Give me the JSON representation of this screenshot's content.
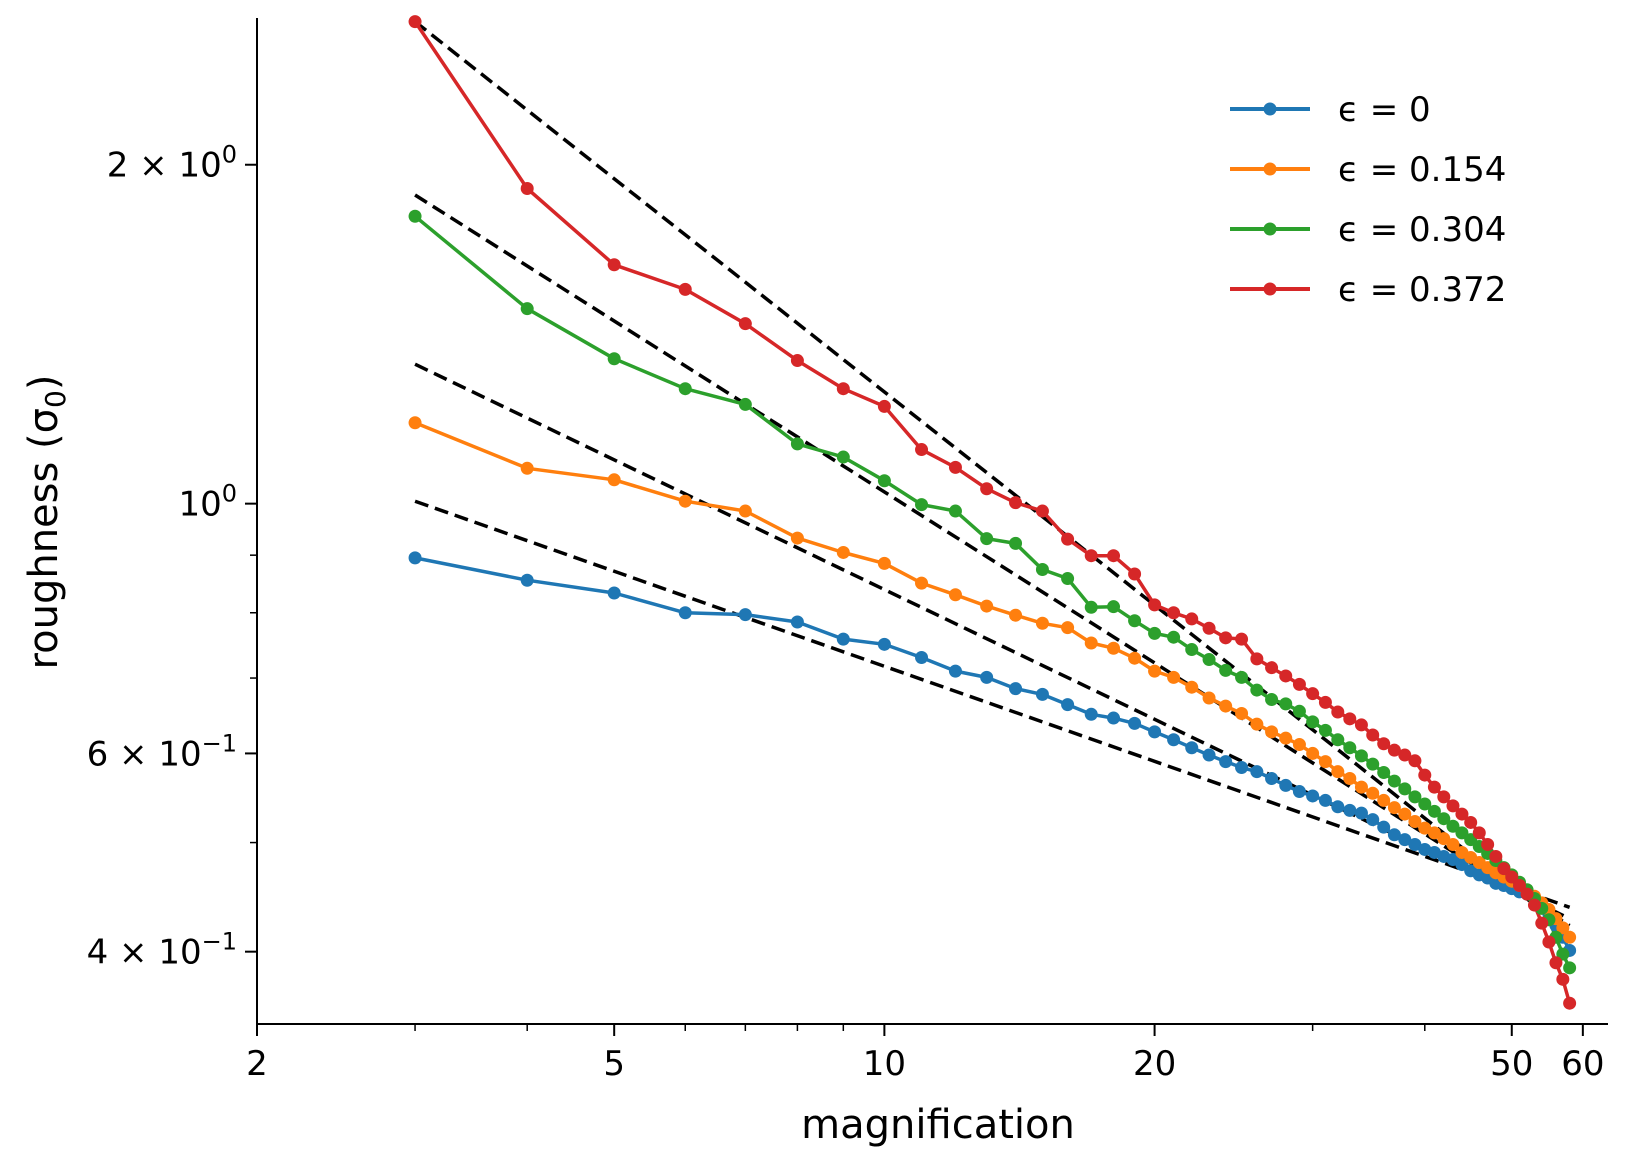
{
  "chart_data": {
    "type": "line",
    "xscale": "log",
    "yscale": "log",
    "xlabel": "magnification",
    "ylabel": "roughness (σ₀)",
    "ylabel_main": "roughness (σ",
    "ylabel_sub": "0",
    "ylabel_close": ")",
    "xlim": [
      2,
      64
    ],
    "ylim": [
      0.345,
      2.7
    ],
    "xticks": [
      {
        "value": 2,
        "label": "2"
      },
      {
        "value": 5,
        "label": "5"
      },
      {
        "value": 10,
        "label": "10"
      },
      {
        "value": 20,
        "label": "20"
      },
      {
        "value": 50,
        "label": "50"
      },
      {
        "value": 60,
        "label": "60"
      }
    ],
    "x_minor_ticks": [
      3,
      4,
      6,
      7,
      8,
      9,
      30,
      40
    ],
    "yticks": [
      {
        "value": 2,
        "base": "2 × 10",
        "exp": "0"
      },
      {
        "value": 1,
        "base": "10",
        "exp": "0"
      },
      {
        "value": 0.6,
        "base": "6 × 10",
        "exp": "−1"
      },
      {
        "value": 0.4,
        "base": "4 × 10",
        "exp": "−1"
      }
    ],
    "x": [
      3,
      4,
      5,
      6,
      7,
      8,
      9,
      10,
      11,
      12,
      13,
      14,
      15,
      16,
      17,
      18,
      19,
      20,
      21,
      22,
      23,
      24,
      25,
      26,
      27,
      28,
      29,
      30,
      31,
      32,
      33,
      34,
      35,
      36,
      37,
      38,
      39,
      40,
      41,
      42,
      43,
      44,
      45,
      46,
      47,
      48,
      49,
      50,
      51,
      52,
      53,
      54,
      55,
      56,
      57,
      58
    ],
    "series": [
      {
        "name": "ϵ = 0",
        "color": "#1f77b4",
        "values": [
          0.895,
          0.855,
          0.833,
          0.8,
          0.797,
          0.785,
          0.758,
          0.75,
          0.73,
          0.71,
          0.701,
          0.685,
          0.677,
          0.663,
          0.65,
          0.645,
          0.638,
          0.627,
          0.617,
          0.607,
          0.598,
          0.59,
          0.583,
          0.578,
          0.57,
          0.562,
          0.555,
          0.55,
          0.545,
          0.538,
          0.534,
          0.531,
          0.524,
          0.516,
          0.508,
          0.503,
          0.498,
          0.493,
          0.49,
          0.486,
          0.483,
          0.478,
          0.472,
          0.468,
          0.465,
          0.46,
          0.458,
          0.455,
          0.452,
          0.45,
          0.447,
          0.44,
          0.432,
          0.422,
          0.412,
          0.401
        ]
      },
      {
        "name": "ϵ = 0.154",
        "color": "#ff7f0e",
        "values": [
          1.18,
          1.075,
          1.05,
          1.005,
          0.985,
          0.932,
          0.905,
          0.885,
          0.85,
          0.83,
          0.811,
          0.796,
          0.783,
          0.776,
          0.752,
          0.744,
          0.729,
          0.71,
          0.701,
          0.687,
          0.672,
          0.661,
          0.651,
          0.637,
          0.627,
          0.619,
          0.611,
          0.6,
          0.59,
          0.578,
          0.57,
          0.56,
          0.553,
          0.545,
          0.537,
          0.53,
          0.522,
          0.515,
          0.51,
          0.504,
          0.498,
          0.49,
          0.485,
          0.48,
          0.475,
          0.47,
          0.466,
          0.462,
          0.458,
          0.453,
          0.448,
          0.442,
          0.436,
          0.428,
          0.42,
          0.412
        ]
      },
      {
        "name": "ϵ = 0.304",
        "color": "#2ca02c",
        "values": [
          1.8,
          1.49,
          1.345,
          1.265,
          1.225,
          1.13,
          1.1,
          1.048,
          0.998,
          0.985,
          0.931,
          0.922,
          0.874,
          0.858,
          0.809,
          0.81,
          0.787,
          0.767,
          0.761,
          0.742,
          0.727,
          0.711,
          0.701,
          0.683,
          0.67,
          0.664,
          0.654,
          0.64,
          0.629,
          0.617,
          0.607,
          0.597,
          0.587,
          0.577,
          0.567,
          0.558,
          0.549,
          0.541,
          0.533,
          0.525,
          0.517,
          0.51,
          0.503,
          0.496,
          0.489,
          0.482,
          0.475,
          0.468,
          0.461,
          0.454,
          0.446,
          0.437,
          0.427,
          0.412,
          0.398,
          0.387
        ]
      },
      {
        "name": "ϵ = 0.372",
        "color": "#d62728",
        "values": [
          2.68,
          1.905,
          1.63,
          1.55,
          1.445,
          1.34,
          1.265,
          1.22,
          1.117,
          1.077,
          1.031,
          1.002,
          0.985,
          0.93,
          0.899,
          0.899,
          0.866,
          0.813,
          0.8,
          0.79,
          0.775,
          0.76,
          0.758,
          0.728,
          0.715,
          0.703,
          0.691,
          0.678,
          0.666,
          0.653,
          0.644,
          0.636,
          0.623,
          0.612,
          0.604,
          0.598,
          0.591,
          0.574,
          0.56,
          0.549,
          0.539,
          0.53,
          0.521,
          0.51,
          0.498,
          0.486,
          0.474,
          0.466,
          0.458,
          0.45,
          0.44,
          0.424,
          0.408,
          0.391,
          0.378,
          0.36
        ]
      }
    ],
    "fit_lines": [
      {
        "x": [
          3,
          58
        ],
        "y": [
          1.005,
          0.438
        ]
      },
      {
        "x": [
          3,
          58
        ],
        "y": [
          1.33,
          0.428
        ]
      },
      {
        "x": [
          3,
          58
        ],
        "y": [
          1.88,
          0.422
        ]
      },
      {
        "x": [
          3,
          58
        ],
        "y": [
          2.68,
          0.416
        ]
      }
    ],
    "fit_line_style": "dashed",
    "fit_line_color": "#000000",
    "legend_position": "top-right"
  }
}
